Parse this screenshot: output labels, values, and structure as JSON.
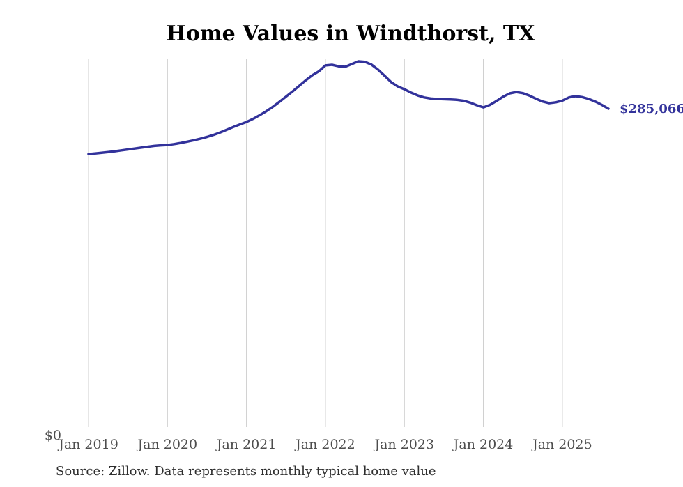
{
  "chart_data": {
    "type": "line",
    "title": "Home Values in Windthorst, TX",
    "source_note": "Source: Zillow. Data represents monthly typical home value",
    "series_name": "Monthly typical home value",
    "unit": "USD",
    "y_zero_label": "$0",
    "end_label": "$285,066",
    "end_value": 285066,
    "ylim": [
      0,
      330000
    ],
    "grid": "vertical-only",
    "legend": "none",
    "colors": {
      "line": "#32329b",
      "end_label": "#32329b",
      "grid": "#cccccc",
      "tick_label": "#4d4d4d",
      "title": "#000000",
      "source": "#2e2e2e",
      "background": "#ffffff"
    },
    "x_tick_labels": [
      "Jan 2019",
      "Jan 2020",
      "Jan 2021",
      "Jan 2022",
      "Jan 2023",
      "Jan 2024",
      "Jan 2025"
    ],
    "x_tick_month_indices": [
      0,
      12,
      24,
      36,
      48,
      60,
      72
    ],
    "x": [
      "2019-01",
      "2019-02",
      "2019-03",
      "2019-04",
      "2019-05",
      "2019-06",
      "2019-07",
      "2019-08",
      "2019-09",
      "2019-10",
      "2019-11",
      "2019-12",
      "2020-01",
      "2020-02",
      "2020-03",
      "2020-04",
      "2020-05",
      "2020-06",
      "2020-07",
      "2020-08",
      "2020-09",
      "2020-10",
      "2020-11",
      "2020-12",
      "2021-01",
      "2021-02",
      "2021-03",
      "2021-04",
      "2021-05",
      "2021-06",
      "2021-07",
      "2021-08",
      "2021-09",
      "2021-10",
      "2021-11",
      "2021-12",
      "2022-01",
      "2022-02",
      "2022-03",
      "2022-04",
      "2022-05",
      "2022-06",
      "2022-07",
      "2022-08",
      "2022-09",
      "2022-10",
      "2022-11",
      "2022-12",
      "2023-01",
      "2023-02",
      "2023-03",
      "2023-04",
      "2023-05",
      "2023-06",
      "2023-07",
      "2023-08",
      "2023-09",
      "2023-10",
      "2023-11",
      "2023-12",
      "2024-01",
      "2024-02",
      "2024-03",
      "2024-04",
      "2024-05",
      "2024-06",
      "2024-07",
      "2024-08",
      "2024-09",
      "2024-10",
      "2024-11",
      "2024-12",
      "2025-01",
      "2025-02",
      "2025-03",
      "2025-04",
      "2025-05",
      "2025-06",
      "2025-07",
      "2025-08"
    ],
    "values": [
      244500,
      245000,
      245600,
      246300,
      247000,
      247800,
      248600,
      249400,
      250200,
      251000,
      251800,
      252300,
      252600,
      253400,
      254400,
      255600,
      256800,
      258200,
      259800,
      261600,
      263800,
      266200,
      268700,
      271000,
      273200,
      276000,
      279200,
      282800,
      286800,
      291200,
      295800,
      300500,
      305500,
      310500,
      315000,
      318500,
      323800,
      324400,
      323000,
      322600,
      325000,
      327500,
      327000,
      324500,
      320000,
      314500,
      308800,
      305000,
      302500,
      299500,
      297000,
      295200,
      294200,
      293800,
      293600,
      293400,
      293000,
      292200,
      290500,
      288200,
      286300,
      288500,
      292000,
      295800,
      298800,
      300000,
      299000,
      296800,
      294000,
      291500,
      290100,
      290800,
      292300,
      295200,
      296300,
      295500,
      293800,
      291500,
      288500,
      285066
    ]
  }
}
